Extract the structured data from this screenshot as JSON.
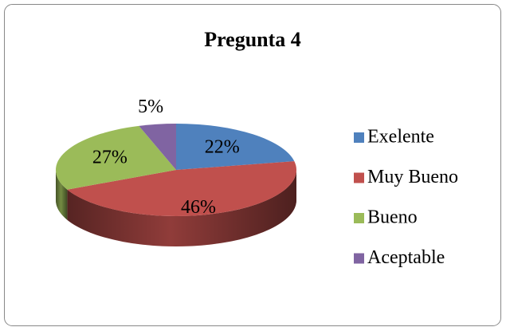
{
  "chart_data": {
    "type": "pie",
    "title": "Pregunta 4",
    "categories": [
      "Exelente",
      "Muy Bueno",
      "Bueno",
      "Aceptable"
    ],
    "values": [
      22,
      46,
      27,
      5
    ],
    "value_labels": [
      "22%",
      "46%",
      "27%",
      "5%"
    ],
    "colors": [
      "#4f81bd",
      "#c0504d",
      "#9bbb59",
      "#8064a2"
    ],
    "legend": "right"
  }
}
